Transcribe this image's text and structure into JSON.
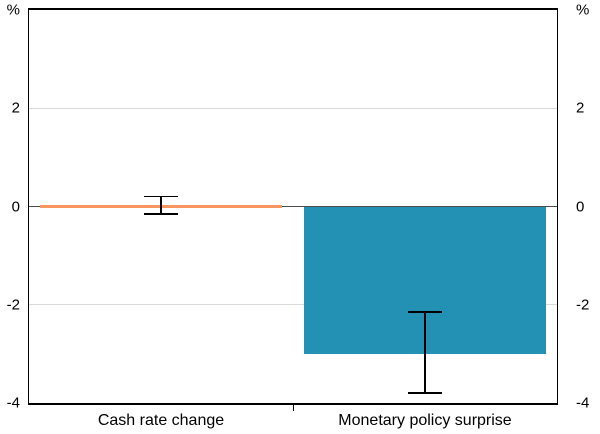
{
  "chart_data": {
    "type": "bar",
    "title": "",
    "categories": [
      "Cash rate change",
      "Monetary policy surprise"
    ],
    "values": [
      0.02,
      -3.0
    ],
    "error_bars": [
      {
        "low": -0.15,
        "high": 0.2
      },
      {
        "low": -3.8,
        "high": -2.15
      }
    ],
    "bar_colors": [
      "#F7965F",
      "#2291B4"
    ],
    "ylim": [
      -4,
      4
    ],
    "yticks": [
      {
        "value": 4,
        "label": "%"
      },
      {
        "value": 2,
        "label": "2"
      },
      {
        "value": 0,
        "label": "0"
      },
      {
        "value": -2,
        "label": "-2"
      },
      {
        "value": -4,
        "label": "-4"
      }
    ],
    "gridlines": [
      {
        "value": 2,
        "color": "#D9D9D9"
      },
      {
        "value": 0,
        "color": "#4D4D4D"
      },
      {
        "value": -2,
        "color": "#D9D9D9"
      }
    ],
    "axis_color": "#000000",
    "error_bar_color": "#000000",
    "unit_label_left": "%",
    "unit_label_right": "%",
    "legend": "none",
    "grid": "horizontal"
  }
}
